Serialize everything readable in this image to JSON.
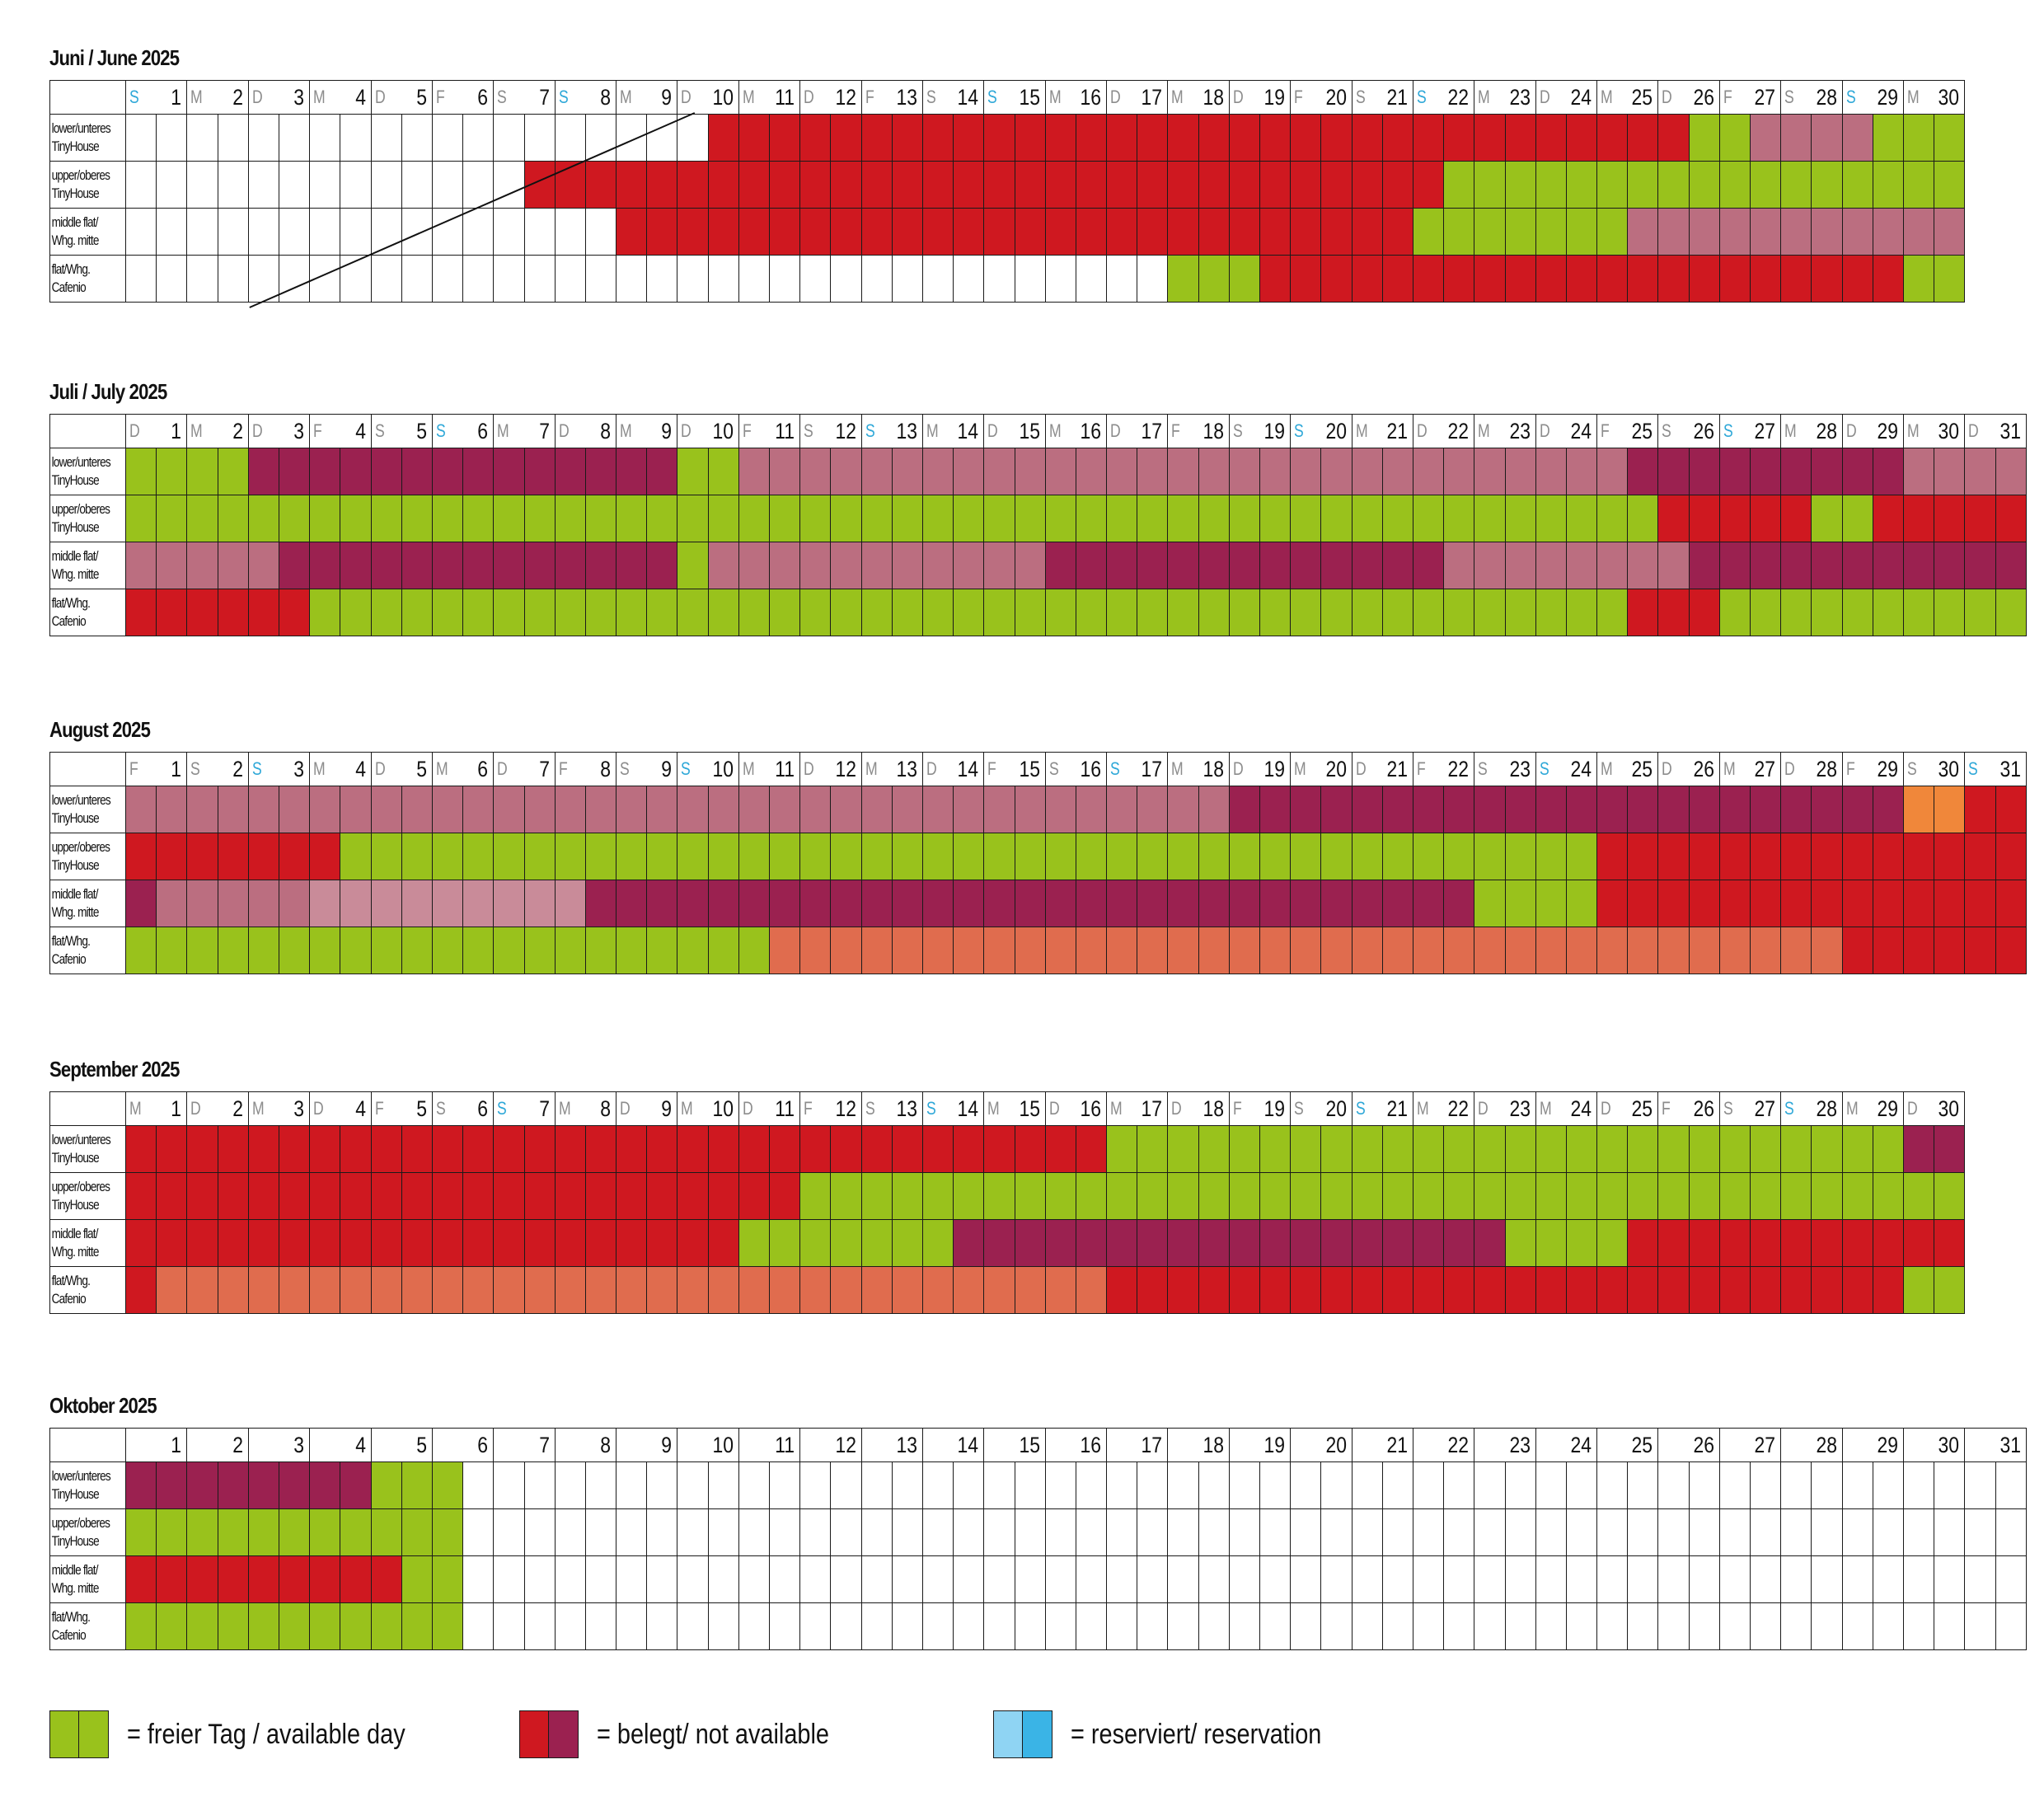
{
  "colors": {
    "G": "#99c21c",
    "R": "#cf1820",
    "M": "#9b2150",
    "P": "#bb6e80",
    "L": "#c98b99",
    "O": "#e06c4e",
    "Y": "#f0873a",
    "W": "#ffffff",
    "B1": "#8fd4f3",
    "B2": "#3ab4e6",
    "sunday_label": "#2fa8d8",
    "weekday_label": "#8c8c8c"
  },
  "row_labels": [
    [
      "lower/unteres",
      "TinyHouse"
    ],
    [
      "upper/oberes",
      "TinyHouse"
    ],
    [
      "middle flat/",
      "Whg. mitte"
    ],
    [
      "flat/Whg.",
      "Cafenio"
    ]
  ],
  "months": [
    {
      "title": "Juni / June 2025",
      "weekdays": [
        "S",
        "M",
        "D",
        "M",
        "D",
        "F",
        "S",
        "S",
        "M",
        "D",
        "M",
        "D",
        "F",
        "S",
        "S",
        "M",
        "D",
        "M",
        "D",
        "F",
        "S",
        "S",
        "M",
        "D",
        "M",
        "D",
        "F",
        "S",
        "S",
        "M"
      ],
      "rows": [
        "WWWWWWWWWWWWWWWWWWWRRRRRRRRRRRRRRRRRRRRRRRRRRRRRRRRRGGPPPPGGGG",
        "WWWWWWWWWWWWWWWWRRRRRRRRRRRRRRRRRRRRRRRRRRRRRRRRRRRRRGGGGGGGGGGGGGGGGGGGGGG",
        "WWWWWWWWWWWWWWWWWWWRRRRRRRRRRRRRRRRRRRRRRRRRRRRRRRRGGGGGGGGPPPPPPPPPPPPPP",
        "WWWWWWWWWWWWWWWWWWWWWWWWWWWWWWWWWWWWWWWWWGGGGRRRRRRRRRRRRRRRRRRRRRRRRRRGGR"
      ]
    },
    {
      "title": "Juli / July 2025",
      "weekdays": [
        "D",
        "M",
        "D",
        "F",
        "S",
        "S",
        "M",
        "D",
        "M",
        "D",
        "F",
        "S",
        "S",
        "M",
        "D",
        "M",
        "D",
        "F",
        "S",
        "S",
        "M",
        "D",
        "M",
        "D",
        "F",
        "S",
        "S",
        "M",
        "D",
        "M",
        "D"
      ],
      "rows": [
        "GGGGGMMMMMMMMMMMMMMMMMMGGGPPPPPPPPPPPPPPPPPPPPPPPPPPPPPPPPPPPPPPMMMMMMMMMMMMPPPPPP",
        "GGGGGGGGGGGGGGGGGGGGGGGGGGGGGGGGGGGGGGGGGGGGGGGGGGGGGGGGGGGGGGGGGRRRRRRGGGRRRRRRR",
        "PPPPPPPMMMMMMMMMMMMMMMMMGGPPPPPPPPPPPPPPPPMMMMMMMMMMMMMMMMMPPPPPPPPPPPPMMMMMMMMMMMMMMMM",
        "RRRRRRRGGGGGGGGGGGGGGGGGGGGGGGGGGGGGGGGGGGGGGGGGGGGGGGGGGGGGGGGGRRRRGGGGGGGGGGGGGG"
      ]
    },
    {
      "title": "August 2025",
      "weekdays": [
        "F",
        "S",
        "S",
        "M",
        "D",
        "M",
        "D",
        "F",
        "S",
        "S",
        "M",
        "D",
        "M",
        "D",
        "F",
        "S",
        "S",
        "M",
        "D",
        "M",
        "D",
        "F",
        "S",
        "S",
        "M",
        "D",
        "M",
        "D",
        "F",
        "S",
        "S"
      ],
      "rows": [
        "PPPPPPPPPPPPPPPPPPPPPPPPPPPPPPPPPPPPPPPPPMMMMMMMMMMMMMMMMMMMMMMMMMYYRRR",
        "RRRRRRRGGGGGGGGGGGGGGGGGGGGGGGGGGGGGGGGGGGGGGGGGGGGGGGRRRRRRRRRRRRRRRR",
        "MPPPPPLLLLLLLLLLMMMMMMMMMMMMMMMMMMMMMMMMMMMMMMMGGGGRRRRRRRRRRRRRRRR",
        "GGGGGGGGGGGGGGGGGGGGGGGGOOOOOOOOOOOOOOOOOOOOOOOOOOOOOOOOOOOOOOOOORRRRRRRR"
      ]
    },
    {
      "title": "September 2025",
      "weekdays": [
        "M",
        "D",
        "M",
        "D",
        "F",
        "S",
        "S",
        "M",
        "D",
        "M",
        "D",
        "F",
        "S",
        "S",
        "M",
        "D",
        "M",
        "D",
        "F",
        "S",
        "S",
        "M",
        "D",
        "M",
        "D",
        "F",
        "S",
        "S",
        "M",
        "D"
      ],
      "rows": [
        "RRRRRRRRRRRRRRRRRRRRRRRRRRRRRRRRRRRRRRRRRRRRRRGGGGGGGGGGGGGGGGGGGGGGGGGGGGGGGGGGGGGGMMM",
        "RRRRRRRRRRRRRRRRRRRRRRRRRRRRRRRGGGGGGGGGGGGGGGGGGGGGGGGGGGGGGGGGGGGGGGGGGGGGGGGGGGGGGGG",
        "RRRRRRRRRRRRRRRRRRRRRRRRRRRRRRRGGGGGGGGGGGMMMMMMMMMMMMMMMMMMMMMMMMMMMMMGGGGGGRRRRRRRRRRRRRRRRRR",
        "ROOOOOOOOOOOOOOOOOOOOOOOOOOOOOOOOOOOOOOOOOOOOOOORRRRRRRRRRRRRRRRRRRRRRRRRRRRRRRRRRRRRRRGGG"
      ]
    },
    {
      "title": "Oktober 2025",
      "weekdays": [
        "",
        "",
        "",
        "",
        "",
        "",
        "",
        "",
        "",
        "",
        "",
        "",
        "",
        "",
        "",
        "",
        "",
        "",
        "",
        "",
        "",
        "",
        "",
        "",
        "",
        "",
        "",
        "",
        "",
        "",
        ""
      ],
      "rows": [
        "MMMMMMMGGGWWWWWWWWWWWWWWWWWWWWWWWWWWWWWWWWWWWWWWWWWWWWWWWWWW",
        "GGGGGGGGGGWWWWWWWWWWWWWWWWWWWWWWWWWWWWWWWWWWWWWWWWWWWWWWWWWW",
        "RRRRRRRRGGWWWWWWWWWWWWWWWWWWWWWWWWWWWWWWWWWWWWWWWWWWWWWWWWWW",
        "GGGGGGGGGGWWWWWWWWWWWWWWWWWWWWWWWWWWWWWWWWWWWWWWWWWWWWWWWWWW"
      ]
    }
  ],
  "legend": [
    {
      "text": "= freier Tag / available day",
      "colors": [
        "G",
        "G"
      ]
    },
    {
      "text": "= belegt/ not available",
      "colors": [
        "R",
        "M"
      ]
    },
    {
      "text": "= reserviert/ reservation",
      "colors": [
        "B1",
        "B2"
      ]
    }
  ]
}
